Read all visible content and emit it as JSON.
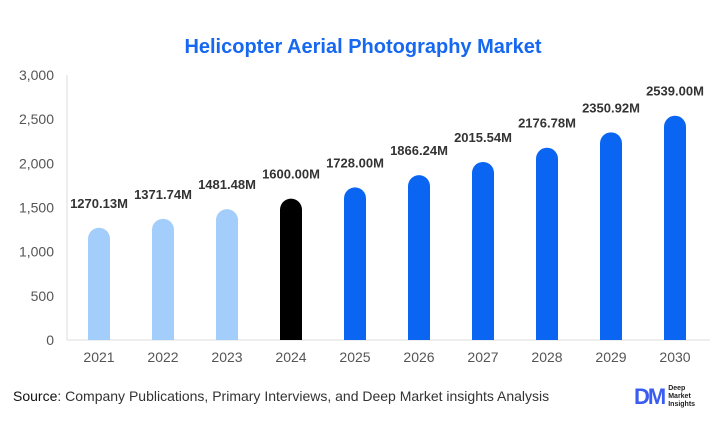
{
  "chart_data": {
    "type": "bar",
    "title": "Helicopter Aerial Photography Market",
    "categories": [
      "2021",
      "2022",
      "2023",
      "2024",
      "2025",
      "2026",
      "2027",
      "2028",
      "2029",
      "2030"
    ],
    "values": [
      1270.13,
      1371.74,
      1481.48,
      1600.0,
      1728.0,
      1866.24,
      2015.54,
      2176.78,
      2350.92,
      2539.0
    ],
    "data_labels": [
      "1270.13M",
      "1371.74M",
      "1481.48M",
      "1600.00M",
      "1728.00M",
      "1866.24M",
      "2015.54M",
      "2176.78M",
      "2350.92M",
      "2539.00M"
    ],
    "ylim": [
      0,
      3000
    ],
    "yticks": [
      0,
      500,
      1000,
      1500,
      2000,
      2500,
      3000
    ],
    "ytick_labels": [
      "0",
      "500",
      "1,000",
      "1,500",
      "2,000",
      "2,500",
      "3,000"
    ],
    "xlabel": "",
    "ylabel": "",
    "colors": {
      "historical": "#a3cdfa",
      "base": "#000000",
      "forecast": "#0a66f2"
    }
  },
  "footer": {
    "source_label": "Source",
    "source_text": ": Company Publications, Primary Interviews, and Deep Market insights Analysis"
  },
  "logo": {
    "mark": "DM",
    "text": "Deep Market Insights"
  }
}
